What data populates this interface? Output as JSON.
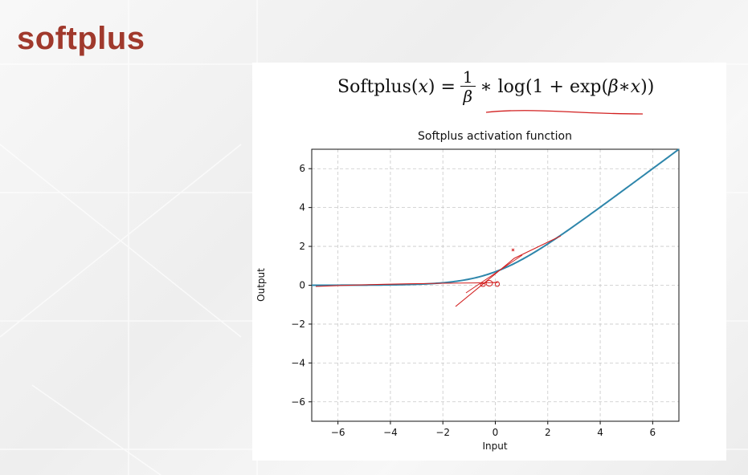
{
  "slide": {
    "title": "softplus"
  },
  "formula": {
    "lhs": "Softplus(",
    "lhs_var": "x",
    "lhs_close": ") =",
    "numerator": "1",
    "denominator": "β",
    "rhs": "∗ log(1 + exp(",
    "rhs_beta": "β",
    "rhs_mul": " ∗ ",
    "rhs_var": "x",
    "rhs_close": "))"
  },
  "chart_data": {
    "type": "line",
    "title": "Softplus activation function",
    "xlabel": "Input",
    "ylabel": "Output",
    "xlim": [
      -7,
      7
    ],
    "ylim": [
      -7,
      7
    ],
    "xticks": [
      -6,
      -4,
      -2,
      0,
      2,
      4,
      6
    ],
    "yticks": [
      -6,
      -4,
      -2,
      0,
      2,
      4,
      6
    ],
    "xtick_labels": [
      "−6",
      "−4",
      "−2",
      "0",
      "2",
      "4",
      "6"
    ],
    "ytick_labels": [
      "−6",
      "−4",
      "−2",
      "0",
      "2",
      "4",
      "6"
    ],
    "grid": true,
    "function": "softplus",
    "beta": 1,
    "x": [
      -7,
      -6.5,
      -6,
      -5.5,
      -5,
      -4.5,
      -4,
      -3.5,
      -3,
      -2.5,
      -2,
      -1.5,
      -1,
      -0.5,
      0,
      0.5,
      1,
      1.5,
      2,
      2.5,
      3,
      3.5,
      4,
      4.5,
      5,
      5.5,
      6,
      6.5,
      7
    ],
    "y": [
      0.001,
      0.0015,
      0.0025,
      0.0041,
      0.0067,
      0.011,
      0.0181,
      0.0298,
      0.0486,
      0.0789,
      0.1269,
      0.2014,
      0.3133,
      0.4741,
      0.6931,
      0.9741,
      1.3133,
      1.7014,
      2.1269,
      2.5789,
      3.0486,
      3.5298,
      4.0181,
      4.511,
      5.0067,
      5.5041,
      6.0025,
      6.5015,
      7.001
    ],
    "line_color": "#2e86ab"
  },
  "colors": {
    "title": "#a0392c",
    "annotation": "#d22020",
    "grid": "#c8c8c8"
  }
}
